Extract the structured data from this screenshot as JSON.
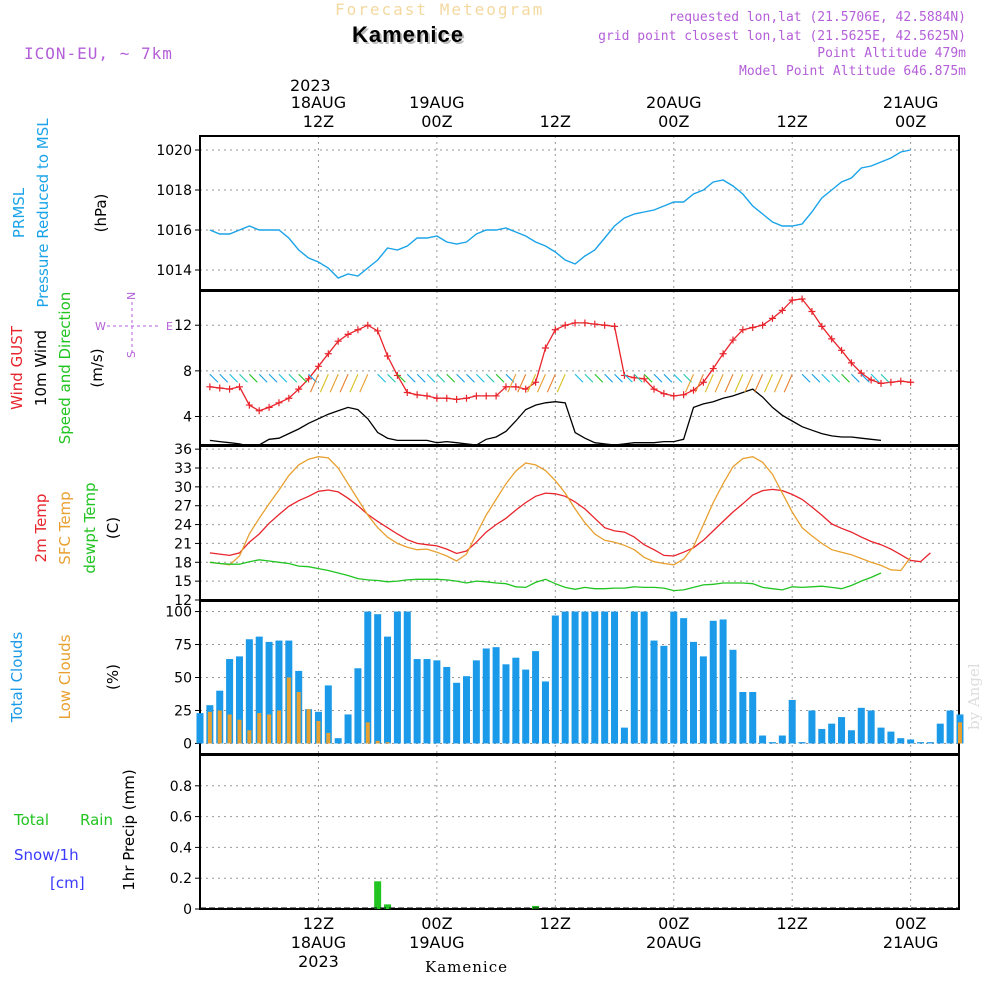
{
  "header": {
    "title": "Kamenice",
    "subtitle": "Forecast Meteogram",
    "model": "ICON-EU, ~ 7km",
    "requested": "requested lon,lat (21.5706E, 42.5884N)",
    "gridpoint": "grid point closest lon,lat (21.5625E, 42.5625N)",
    "point_alt": "Point Altitude 479m",
    "model_alt": "Model Point Altitude 646.875m",
    "footer": "Kamenice",
    "credit": "by Angel"
  },
  "time_axis": {
    "top_year": "2023",
    "ticks": [
      {
        "hour": 12,
        "line1": "18AUG",
        "line2": "12Z"
      },
      {
        "hour": 24,
        "line1": "19AUG",
        "line2": "00Z"
      },
      {
        "hour": 36,
        "line1": "",
        "line2": "12Z"
      },
      {
        "hour": 48,
        "line1": "20AUG",
        "line2": "00Z"
      },
      {
        "hour": 60,
        "line1": "",
        "line2": "12Z"
      },
      {
        "hour": 72,
        "line1": "21AUG",
        "line2": "00Z"
      }
    ],
    "bottom_ticks": [
      {
        "hour": 12,
        "line1": "12Z",
        "line2": "18AUG",
        "line3": "2023"
      },
      {
        "hour": 24,
        "line1": "00Z",
        "line2": "19AUG",
        "line3": ""
      },
      {
        "hour": 36,
        "line1": "12Z",
        "line2": "",
        "line3": ""
      },
      {
        "hour": 48,
        "line1": "00Z",
        "line2": "20AUG",
        "line3": ""
      },
      {
        "hour": 60,
        "line1": "12Z",
        "line2": "",
        "line3": ""
      },
      {
        "hour": 72,
        "line1": "00Z",
        "line2": "21AUG",
        "line3": ""
      }
    ]
  },
  "panel_labels": {
    "pressure": {
      "a": "PRMSL",
      "b": "Pressure Reduced to MSL",
      "unit": "(hPa)"
    },
    "wind": {
      "a": "Wind GUST",
      "b": "10m Wind",
      "c": "Speed and Direction",
      "unit": "(m/s)",
      "compass_n": "N",
      "compass_s": "S",
      "compass_w": "W",
      "compass_e": "E"
    },
    "temp": {
      "a": "2m Temp",
      "b": "SFC Temp",
      "c": "dewpt Temp",
      "unit": "(C)"
    },
    "cloud": {
      "a": "Total Clouds",
      "b": "Low Clouds",
      "unit": "(%)"
    },
    "precip": {
      "a": "Total",
      "b": "Rain",
      "c": "Snow/1h",
      "d": "[cm]",
      "unit": "1hr Precip (mm)"
    }
  },
  "colors": {
    "pressure": "#1aa3e8",
    "gust": "#e8242c",
    "wind": "#000000",
    "temp2m": "#e8242c",
    "sfctemp": "#e8a030",
    "dewpt": "#22c422",
    "total_cloud": "#1a9ae8",
    "low_cloud": "#e8a030",
    "rain": "#22c422",
    "snow": "#3a3aff",
    "header_purple": "#b45fd8",
    "title_faint": "#f3d9a0"
  },
  "chart_data": [
    {
      "type": "line",
      "name": "pressure",
      "title": "PRMSL Pressure Reduced to MSL",
      "ylabel": "(hPa)",
      "ylim": [
        1013,
        1020.7
      ],
      "yticks": [
        1014,
        1016,
        1018,
        1020
      ],
      "x_hours_start": 1,
      "series": [
        {
          "name": "PRMSL",
          "values": [
            1016.0,
            1015.8,
            1015.8,
            1016.0,
            1016.2,
            1016.0,
            1016.0,
            1016.0,
            1015.6,
            1015.0,
            1014.6,
            1014.4,
            1014.1,
            1013.6,
            1013.8,
            1013.7,
            1014.1,
            1014.5,
            1015.1,
            1015.0,
            1015.2,
            1015.6,
            1015.6,
            1015.7,
            1015.4,
            1015.3,
            1015.4,
            1015.8,
            1016.0,
            1016.0,
            1016.1,
            1015.9,
            1015.7,
            1015.4,
            1015.2,
            1014.9,
            1014.5,
            1014.3,
            1014.7,
            1015.0,
            1015.6,
            1016.2,
            1016.6,
            1016.8,
            1016.9,
            1017.0,
            1017.2,
            1017.4,
            1017.4,
            1017.8,
            1018.0,
            1018.4,
            1018.5,
            1018.2,
            1017.8,
            1017.2,
            1016.8,
            1016.4,
            1016.2,
            1016.2,
            1016.3,
            1016.9,
            1017.6,
            1018.0,
            1018.4,
            1018.6,
            1019.1,
            1019.2,
            1019.4,
            1019.6,
            1019.9,
            1020.0
          ]
        }
      ]
    },
    {
      "type": "line",
      "name": "wind",
      "title": "Wind GUST / 10m Wind Speed and Direction",
      "ylabel": "(m/s)",
      "ylim": [
        1.5,
        15
      ],
      "yticks": [
        4,
        8,
        12
      ],
      "x_hours_start": 1,
      "series": [
        {
          "name": "Wind GUST",
          "values": [
            6.6,
            6.5,
            6.4,
            6.6,
            5.0,
            4.5,
            4.8,
            5.2,
            5.6,
            6.4,
            7.3,
            8.4,
            9.5,
            10.6,
            11.2,
            11.6,
            12.0,
            11.5,
            9.3,
            7.6,
            6.1,
            5.9,
            5.8,
            5.6,
            5.6,
            5.5,
            5.6,
            5.8,
            5.8,
            5.8,
            6.6,
            6.6,
            6.4,
            7.0,
            10.0,
            11.6,
            12.0,
            12.2,
            12.2,
            12.1,
            12.0,
            11.9,
            7.6,
            7.4,
            7.3,
            6.4,
            6.0,
            5.8,
            5.9,
            6.3,
            7.0,
            8.2,
            9.5,
            10.7,
            11.6,
            11.8,
            12.0,
            12.6,
            13.3,
            14.2,
            14.3,
            13.2,
            11.9,
            10.8,
            9.8,
            8.7,
            7.8,
            7.2,
            6.9,
            7.0,
            7.1,
            7.0
          ]
        },
        {
          "name": "10m Wind",
          "values": [
            1.9,
            1.8,
            1.7,
            1.6,
            1.4,
            1.5,
            2.0,
            2.1,
            2.5,
            2.9,
            3.4,
            3.8,
            4.2,
            4.5,
            4.8,
            4.6,
            3.8,
            2.6,
            2.1,
            1.9,
            1.9,
            1.9,
            1.9,
            1.7,
            1.8,
            1.7,
            1.6,
            1.5,
            2.0,
            2.2,
            2.7,
            3.6,
            4.6,
            5.0,
            5.2,
            5.3,
            5.2,
            2.6,
            2.1,
            1.7,
            1.6,
            1.5,
            1.6,
            1.7,
            1.7,
            1.7,
            1.8,
            1.8,
            2.0,
            4.8,
            5.1,
            5.3,
            5.6,
            5.8,
            6.1,
            6.4,
            5.7,
            4.8,
            4.1,
            3.6,
            3.1,
            2.8,
            2.5,
            2.3,
            2.2,
            2.2,
            2.1,
            2.0,
            1.9
          ]
        }
      ]
    },
    {
      "type": "line",
      "name": "temperature",
      "title": "2m Temp / SFC Temp / dewpt Temp",
      "ylabel": "(C)",
      "ylim": [
        12,
        36.5
      ],
      "yticks": [
        12,
        15,
        18,
        21,
        24,
        27,
        30,
        33,
        36
      ],
      "x_hours_start": 1,
      "series": [
        {
          "name": "2m Temp",
          "values": [
            19.5,
            19.3,
            19.1,
            19.5,
            21.2,
            22.5,
            24.2,
            25.6,
            26.9,
            27.8,
            28.5,
            29.3,
            29.5,
            29.2,
            28.2,
            27.0,
            25.6,
            24.5,
            23.5,
            22.5,
            21.6,
            21.0,
            20.8,
            20.6,
            20.1,
            19.4,
            19.8,
            21.2,
            22.8,
            24.0,
            25.0,
            26.3,
            27.5,
            28.5,
            29.0,
            28.9,
            28.5,
            27.6,
            26.5,
            25.0,
            23.5,
            23.0,
            22.8,
            22.0,
            20.8,
            20.0,
            19.1,
            19.0,
            19.6,
            20.3,
            21.5,
            23.0,
            24.5,
            26.0,
            27.3,
            28.7,
            29.4,
            29.6,
            29.4,
            28.8,
            28.0,
            26.8,
            25.5,
            24.1,
            23.4,
            22.8,
            22.0,
            21.3,
            20.8,
            20.1,
            19.2,
            18.3,
            18.1,
            19.5
          ]
        },
        {
          "name": "SFC Temp",
          "values": [
            18.0,
            17.8,
            17.6,
            19.0,
            22.5,
            25.0,
            27.3,
            29.5,
            31.8,
            33.5,
            34.4,
            34.8,
            34.6,
            33.0,
            30.5,
            28.0,
            25.5,
            23.5,
            22.0,
            21.0,
            20.4,
            20.0,
            20.1,
            19.6,
            19.0,
            18.2,
            19.3,
            22.5,
            25.5,
            28.0,
            30.5,
            32.5,
            33.8,
            33.5,
            32.6,
            31.0,
            29.0,
            26.5,
            24.3,
            22.5,
            21.5,
            21.2,
            20.7,
            20.0,
            18.8,
            18.1,
            17.8,
            17.6,
            18.5,
            20.5,
            24.0,
            27.5,
            30.5,
            33.2,
            34.5,
            34.8,
            33.9,
            32.0,
            29.0,
            26.0,
            23.5,
            22.2,
            21.0,
            20.0,
            19.6,
            19.2,
            18.6,
            18.0,
            17.5,
            16.8,
            16.7,
            18.8
          ]
        },
        {
          "name": "dewpt Temp",
          "values": [
            18.0,
            17.8,
            17.7,
            17.7,
            18.1,
            18.4,
            18.2,
            18.0,
            17.8,
            17.4,
            17.3,
            17.0,
            16.7,
            16.3,
            15.9,
            15.4,
            15.2,
            15.1,
            14.9,
            15.0,
            15.2,
            15.3,
            15.3,
            15.3,
            15.2,
            15.0,
            14.7,
            15.0,
            14.9,
            14.7,
            14.6,
            14.1,
            14.0,
            14.8,
            15.3,
            14.6,
            14.0,
            13.7,
            14.0,
            13.8,
            13.8,
            13.9,
            13.9,
            14.1,
            14.0,
            14.0,
            13.9,
            13.5,
            13.6,
            14.0,
            14.4,
            14.5,
            14.7,
            14.7,
            14.7,
            14.6,
            14.0,
            13.8,
            13.6,
            14.1,
            14.0,
            14.1,
            14.2,
            14.0,
            13.8,
            14.3,
            15.0,
            15.6,
            16.3
          ]
        }
      ]
    },
    {
      "type": "bar",
      "name": "clouds",
      "title": "Total Clouds / Low Clouds",
      "ylabel": "(%)",
      "ylim": [
        -8,
        108
      ],
      "yticks": [
        0,
        25,
        50,
        75,
        100
      ],
      "x_hours_start": 0,
      "series": [
        {
          "name": "Total Clouds",
          "values": [
            23,
            29,
            40,
            64,
            66,
            79,
            81,
            77,
            78,
            78,
            55,
            26,
            24,
            44,
            4,
            22,
            57,
            100,
            98,
            81,
            100,
            100,
            64,
            64,
            63,
            58,
            46,
            51,
            63,
            72,
            73,
            60,
            65,
            56,
            70,
            47,
            97,
            100,
            100,
            100,
            100,
            100,
            100,
            12,
            100,
            100,
            78,
            74,
            100,
            95,
            77,
            66,
            93,
            94,
            71,
            39,
            39,
            6,
            1,
            6,
            33,
            1,
            25,
            11,
            15,
            20,
            10,
            27,
            25,
            12,
            9,
            4,
            3,
            1,
            1,
            15,
            25,
            22
          ]
        },
        {
          "name": "Low Clouds",
          "values": [
            0,
            24,
            25,
            22,
            18,
            10,
            23,
            22,
            25,
            50,
            39,
            26,
            17,
            8,
            0,
            0,
            0,
            16,
            2,
            1,
            0,
            0,
            0,
            0,
            0,
            0,
            0,
            0,
            0,
            0,
            0,
            0,
            0,
            0,
            0,
            0,
            0,
            0,
            0,
            0,
            0,
            0,
            0,
            0,
            0,
            0,
            0,
            0,
            0,
            0,
            0,
            0,
            0,
            0,
            0,
            0,
            0,
            0,
            0,
            0,
            0,
            0,
            0,
            0,
            0,
            0,
            0,
            0,
            0,
            0,
            0,
            0,
            0,
            0,
            0,
            0,
            0,
            16
          ]
        }
      ]
    },
    {
      "type": "bar",
      "name": "precipitation",
      "title": "1hr Precip (mm)",
      "ylabel": "1hr Precip (mm)",
      "ylim": [
        0,
        1.0
      ],
      "yticks": [
        0,
        0.2,
        0.4,
        0.6,
        0.8
      ],
      "ytick_labels": [
        "0",
        "0.2",
        "0.4",
        "0.6",
        "0.8"
      ],
      "x_hours_start": 0,
      "series": [
        {
          "name": "Total Rain",
          "values": [
            0,
            0,
            0,
            0,
            0,
            0,
            0,
            0,
            0,
            0,
            0,
            0,
            0,
            0,
            0,
            0,
            0,
            0,
            0.18,
            0.03,
            0,
            0,
            0,
            0,
            0,
            0,
            0,
            0,
            0,
            0,
            0,
            0,
            0,
            0,
            0.02,
            0,
            0,
            0,
            0,
            0,
            0,
            0,
            0,
            0,
            0,
            0,
            0,
            0,
            0,
            0,
            0,
            0,
            0,
            0,
            0,
            0,
            0,
            0,
            0,
            0,
            0,
            0,
            0,
            0,
            0,
            0,
            0,
            0,
            0,
            0,
            0,
            0,
            0,
            0,
            0,
            0,
            0
          ]
        },
        {
          "name": "Snow/1h",
          "values": [
            0,
            0,
            0,
            0,
            0,
            0,
            0,
            0,
            0,
            0,
            0,
            0,
            0,
            0,
            0,
            0,
            0,
            0,
            0,
            0,
            0,
            0,
            0,
            0,
            0,
            0,
            0,
            0,
            0,
            0,
            0,
            0,
            0,
            0,
            0,
            0,
            0,
            0,
            0,
            0,
            0,
            0,
            0,
            0,
            0,
            0,
            0,
            0,
            0,
            0,
            0,
            0,
            0,
            0,
            0,
            0,
            0,
            0,
            0,
            0,
            0,
            0,
            0,
            0,
            0,
            0,
            0,
            0,
            0,
            0,
            0,
            0,
            0,
            0,
            0,
            0,
            0
          ]
        }
      ]
    }
  ]
}
